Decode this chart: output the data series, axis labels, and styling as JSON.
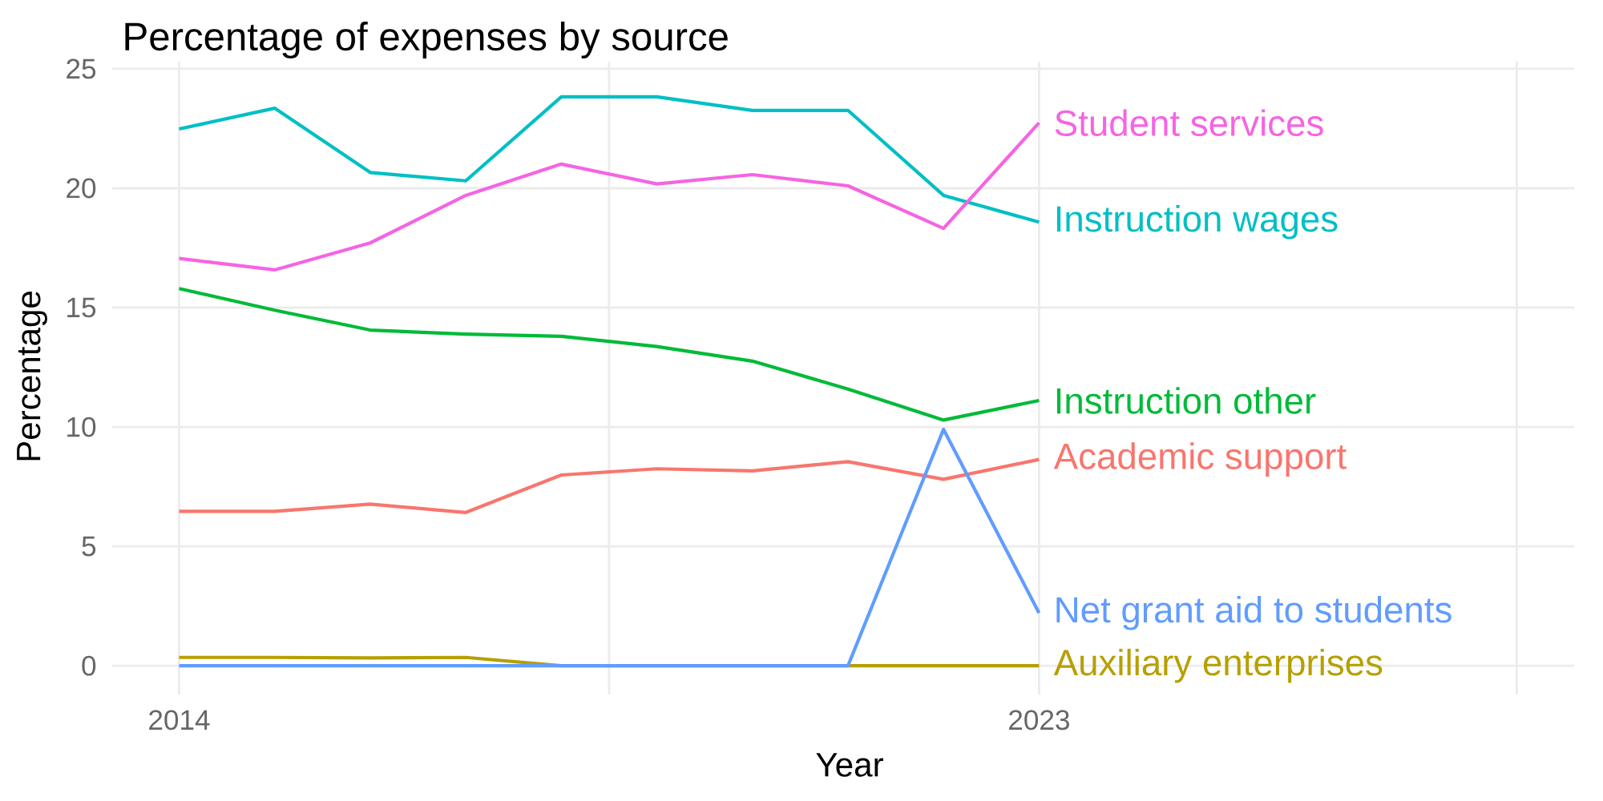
{
  "chart_data": {
    "type": "line",
    "title": "Percentage of expenses by source",
    "xlabel": "Year",
    "ylabel": "Percentage",
    "x": [
      2014,
      2015,
      2016,
      2017,
      2018,
      2019,
      2020,
      2021,
      2022,
      2023
    ],
    "series": [
      {
        "name": "Academic support",
        "color": "#f8766d",
        "values": [
          6.47,
          6.47,
          6.77,
          6.42,
          7.99,
          8.25,
          8.16,
          8.55,
          7.81,
          8.64
        ]
      },
      {
        "name": "Auxiliary enterprises",
        "color": "#b79f00",
        "values": [
          0.35,
          0.35,
          0.33,
          0.35,
          0,
          0,
          0,
          0,
          0,
          0
        ]
      },
      {
        "name": "Instruction other",
        "color": "#00ba38",
        "values": [
          15.8,
          14.89,
          14.06,
          13.89,
          13.8,
          13.37,
          12.76,
          11.59,
          10.29,
          11.11
        ]
      },
      {
        "name": "Instruction wages",
        "color": "#00bfc4",
        "values": [
          22.48,
          23.35,
          20.66,
          20.31,
          23.83,
          23.83,
          23.26,
          23.26,
          19.7,
          18.58
        ]
      },
      {
        "name": "Net grant aid to students",
        "color": "#619cff",
        "values": [
          0,
          0,
          0,
          0,
          0,
          0,
          0,
          0,
          9.9,
          2.21
        ]
      },
      {
        "name": "Student services",
        "color": "#f564e3",
        "values": [
          17.06,
          16.58,
          17.71,
          19.7,
          21.01,
          20.18,
          20.57,
          20.1,
          18.32,
          22.74
        ]
      }
    ],
    "xlim": [
      2013.3,
      2028.6
    ],
    "xticks": [
      2014,
      {
        "value": 2018.5,
        "label": null
      },
      2023,
      {
        "value": 2028,
        "label": null
      }
    ],
    "ylim": [
      -1.2,
      25.3
    ],
    "yticks": [
      0,
      5,
      10,
      15,
      20,
      25
    ],
    "grid": true,
    "line_style": "solid",
    "marker": "none"
  }
}
